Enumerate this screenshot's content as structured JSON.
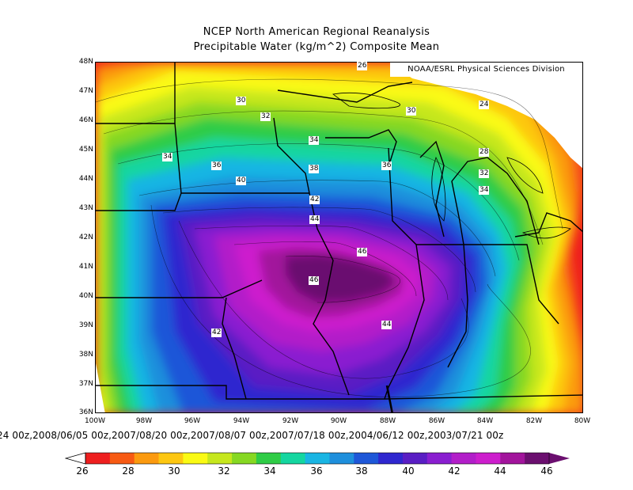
{
  "title": {
    "line1": "NCEP North American Regional Reanalysis",
    "line2": "Precipitable Water (kg/m^2) Composite Mean"
  },
  "credit": "NOAA/ESRL Physical Sciences Division",
  "lat_ticks": [
    "48N",
    "47N",
    "46N",
    "45N",
    "44N",
    "43N",
    "42N",
    "41N",
    "40N",
    "39N",
    "38N",
    "37N",
    "36N"
  ],
  "lon_ticks": [
    "100W",
    "98W",
    "96W",
    "94W",
    "92W",
    "90W",
    "88W",
    "86W",
    "84W",
    "82W",
    "80W"
  ],
  "dates_line": "24 00z,2008/06/05 00z,2007/08/20 00z,2007/08/07 00z,2007/07/18 00z,2004/06/12 00z,2003/07/21 00z",
  "contour_labels": [
    "30",
    "32",
    "34",
    "36",
    "38",
    "40",
    "42",
    "44",
    "46",
    "46",
    "44",
    "42",
    "36",
    "30",
    "28",
    "32",
    "34",
    "24",
    "26",
    "34"
  ],
  "colorbar": {
    "labels": [
      "26",
      "28",
      "30",
      "32",
      "34",
      "36",
      "38",
      "40",
      "42",
      "44",
      "46"
    ],
    "colors": [
      "#ee1f1f",
      "#f75a13",
      "#fb9a0f",
      "#fdc711",
      "#fafa14",
      "#c6e71d",
      "#86d822",
      "#2fcc46",
      "#14d6a0",
      "#19b5e3",
      "#1e8fdc",
      "#1e57d8",
      "#2f27cf",
      "#5a1ec4",
      "#8a1ed0",
      "#b21ec9",
      "#cd1ecd",
      "#a2149c",
      "#6b0f6f"
    ]
  },
  "map_colors": {
    "white": "#ffffff",
    "outer": "#ee1f1f"
  }
}
